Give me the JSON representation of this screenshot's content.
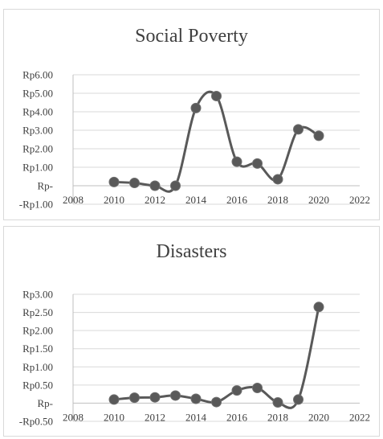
{
  "chart_data": [
    {
      "type": "line",
      "title": "Social Poverty",
      "xlabel": "",
      "ylabel": "",
      "xlim": [
        2008,
        2022
      ],
      "ylim": [
        -1.0,
        6.0
      ],
      "x_ticks": [
        2008,
        2010,
        2012,
        2014,
        2016,
        2018,
        2020,
        2022
      ],
      "y_ticks": [
        -1.0,
        0,
        1.0,
        2.0,
        3.0,
        4.0,
        5.0,
        6.0
      ],
      "y_tick_labels": [
        "-Rp1.00",
        "Rp-",
        "Rp1.00",
        "Rp2.00",
        "Rp3.00",
        "Rp4.00",
        "Rp5.00",
        "Rp6.00"
      ],
      "grid": "horizontal",
      "smooth": true,
      "line_color": "#595959",
      "series": [
        {
          "x": [
            2010,
            2011,
            2012,
            2013,
            2014,
            2015,
            2016,
            2017,
            2018,
            2019,
            2020
          ],
          "values": [
            0.2,
            0.15,
            0.0,
            0.0,
            4.2,
            4.85,
            1.3,
            1.2,
            0.35,
            3.05,
            2.7
          ]
        }
      ]
    },
    {
      "type": "line",
      "title": "Disasters",
      "xlabel": "",
      "ylabel": "",
      "xlim": [
        2008,
        2022
      ],
      "ylim": [
        -0.5,
        3.0
      ],
      "x_ticks": [
        2008,
        2010,
        2012,
        2014,
        2016,
        2018,
        2020,
        2022
      ],
      "y_ticks": [
        -0.5,
        0,
        0.5,
        1.0,
        1.5,
        2.0,
        2.5,
        3.0
      ],
      "y_tick_labels": [
        "-Rp0.50",
        "Rp-",
        "Rp0.50",
        "Rp1.00",
        "Rp1.50",
        "Rp2.00",
        "Rp2.50",
        "Rp3.00"
      ],
      "grid": "horizontal",
      "smooth": true,
      "line_color": "#595959",
      "series": [
        {
          "x": [
            2010,
            2011,
            2012,
            2013,
            2014,
            2015,
            2016,
            2017,
            2018,
            2019,
            2020
          ],
          "values": [
            0.1,
            0.15,
            0.16,
            0.21,
            0.12,
            0.03,
            0.35,
            0.42,
            0.02,
            0.1,
            2.65
          ]
        }
      ]
    }
  ]
}
